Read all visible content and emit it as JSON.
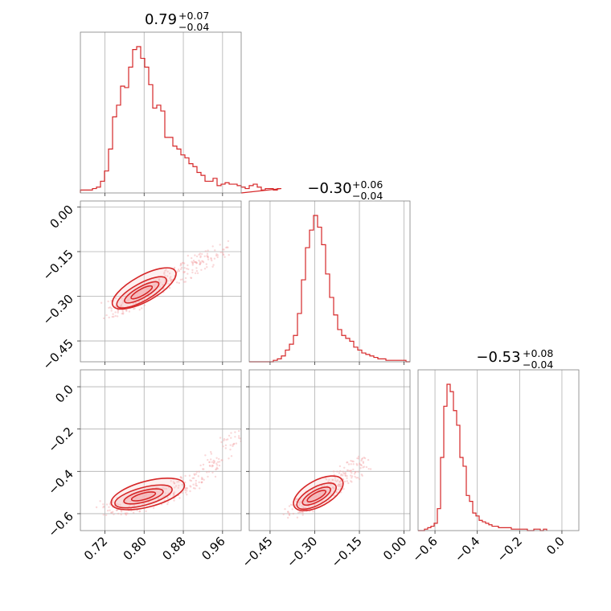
{
  "colors": {
    "line": "#d62728",
    "fill": "#f4b6b8",
    "points": "#f4a9ab",
    "grid": "#b0b0b0",
    "frame": "#808080"
  },
  "chart_data": {
    "type": "corner",
    "grid": true,
    "marginals": [
      {
        "name": "p0",
        "title": {
          "value": "0.79",
          "plus": "+0.07",
          "minus": "−0.04"
        },
        "range": [
          0.67,
          0.998
        ],
        "edges_start": 0.67,
        "bin_width": 0.0082,
        "counts": [
          2,
          2,
          2,
          3,
          4,
          8,
          15,
          30,
          52,
          60,
          73,
          72,
          86,
          98,
          100,
          92,
          86,
          74,
          58,
          60,
          56,
          38,
          38,
          32,
          30,
          26,
          24,
          20,
          18,
          14,
          12,
          8,
          8,
          10,
          5,
          6,
          7,
          6,
          6,
          5,
          4,
          3,
          5,
          6,
          4,
          2,
          3,
          3,
          2,
          3
        ]
      },
      {
        "name": "p1",
        "title": {
          "value": "−0.30",
          "plus": "+0.06",
          "minus": "−0.04"
        },
        "range": [
          -0.52,
          0.02
        ],
        "edges_start": -0.52,
        "bin_width": 0.0135,
        "counts": [
          0,
          0,
          0,
          0,
          0,
          0,
          1,
          2,
          4,
          8,
          12,
          18,
          33,
          56,
          78,
          90,
          100,
          92,
          80,
          60,
          44,
          32,
          22,
          18,
          16,
          14,
          10,
          8,
          6,
          5,
          4,
          3,
          2,
          2,
          1,
          1,
          1,
          1,
          1,
          0
        ]
      },
      {
        "name": "p2",
        "title": {
          "value": "−0.53",
          "plus": "+0.08",
          "minus": "−0.04"
        },
        "range": [
          -0.68,
          0.08
        ],
        "edges_start": -0.68,
        "bin_width": 0.0152,
        "counts": [
          0,
          0,
          1,
          2,
          3,
          5,
          15,
          50,
          85,
          100,
          95,
          82,
          72,
          50,
          44,
          24,
          20,
          12,
          10,
          7,
          6,
          5,
          4,
          3,
          3,
          2,
          2,
          2,
          2,
          1,
          1,
          1,
          1,
          1,
          0,
          0,
          1,
          1,
          0,
          1
        ]
      }
    ],
    "axis_ticks": {
      "p0": [
        "0.72",
        "0.80",
        "0.88",
        "0.96"
      ],
      "p1": [
        "0.00",
        "−0.15",
        "−0.30",
        "−0.45"
      ],
      "p1_x": [
        "−0.45",
        "−0.30",
        "−0.15",
        "0.00"
      ],
      "p2": [
        "0.0",
        "−0.2",
        "−0.4",
        "−0.6"
      ],
      "p2_x": [
        "−0.6",
        "−0.4",
        "−0.2",
        "0.0"
      ]
    },
    "joint": [
      {
        "x": "p0",
        "y": "p1",
        "mean": [
          0.79,
          -0.3
        ],
        "trend": [
          [
            0.73,
            -0.35
          ],
          [
            0.78,
            -0.32
          ],
          [
            0.84,
            -0.25
          ],
          [
            0.9,
            -0.2
          ],
          [
            0.96,
            -0.14
          ]
        ]
      },
      {
        "x": "p0",
        "y": "p2",
        "mean": [
          0.79,
          -0.53
        ],
        "trend": [
          [
            0.72,
            -0.58
          ],
          [
            0.78,
            -0.56
          ],
          [
            0.85,
            -0.5
          ],
          [
            0.92,
            -0.42
          ],
          [
            0.99,
            -0.22
          ]
        ]
      },
      {
        "x": "p1",
        "y": "p2",
        "mean": [
          -0.3,
          -0.53
        ],
        "trend": [
          [
            -0.38,
            -0.58
          ],
          [
            -0.32,
            -0.55
          ],
          [
            -0.25,
            -0.48
          ],
          [
            -0.2,
            -0.43
          ],
          [
            -0.14,
            -0.36
          ]
        ]
      }
    ]
  }
}
